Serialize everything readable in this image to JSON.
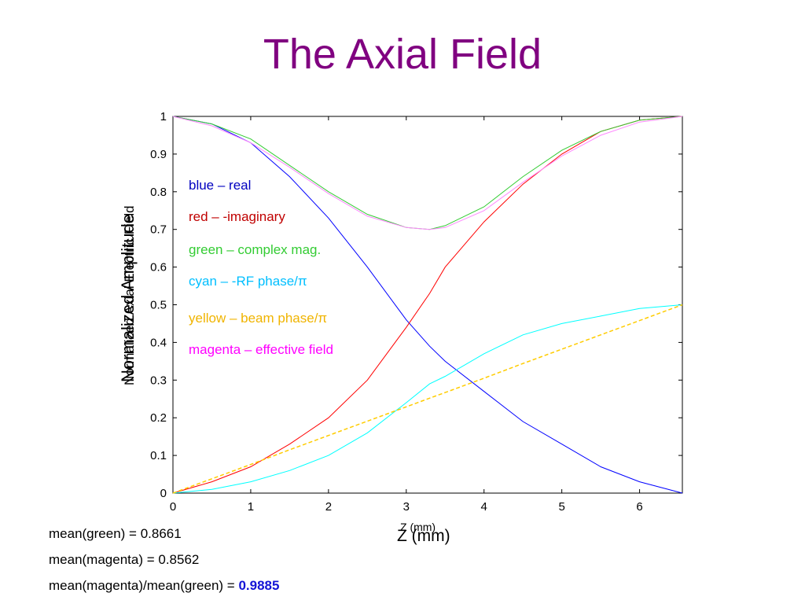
{
  "title": "The Axial Field",
  "legend": [
    {
      "text": "blue – real",
      "color": "#0000c0"
    },
    {
      "text": "red – -imaginary",
      "color": "#c00000"
    },
    {
      "text": "green – complex mag.",
      "color": "#33cc33"
    },
    {
      "text": "cyan – -RF phase/π",
      "color": "#00bfff"
    },
    {
      "text": "yellow – beam phase/π",
      "color": "#f0b400"
    },
    {
      "text": "magenta – effective field",
      "color": "#ff00ff"
    }
  ],
  "stats": {
    "mean_green": "mean(green) = 0.8661",
    "mean_magenta": "mean(magenta) = 0.8562",
    "ratio_label": "mean(magenta)/mean(green) = ",
    "ratio_value": "0.9885"
  },
  "chart_data": {
    "type": "line",
    "title": "",
    "xlabel": "Z (mm)",
    "ylabel": "Normalized Amplitude",
    "ylabel_overlay": "Normalized Axial Electric Field",
    "xlim": [
      0,
      6.55
    ],
    "ylim": [
      0,
      1
    ],
    "xticks": [
      0,
      1,
      2,
      3,
      4,
      5,
      6
    ],
    "yticks": [
      0,
      0.1,
      0.2,
      0.3,
      0.4,
      0.5,
      0.6,
      0.7,
      0.8,
      0.9,
      1
    ],
    "x": [
      0,
      0.5,
      1,
      1.5,
      2,
      2.5,
      3,
      3.3,
      3.5,
      4,
      4.5,
      5,
      5.5,
      6,
      6.55
    ],
    "series": [
      {
        "name": "blue – real",
        "color": "#0000ff",
        "values": [
          1.0,
          0.98,
          0.93,
          0.84,
          0.73,
          0.6,
          0.46,
          0.39,
          0.35,
          0.27,
          0.19,
          0.13,
          0.07,
          0.03,
          0.0
        ]
      },
      {
        "name": "red – -imaginary",
        "color": "#ff0000",
        "values": [
          0.0,
          0.03,
          0.07,
          0.13,
          0.2,
          0.3,
          0.44,
          0.53,
          0.6,
          0.72,
          0.82,
          0.9,
          0.96,
          0.99,
          1.0
        ]
      },
      {
        "name": "green – complex mag.",
        "color": "#33cc33",
        "values": [
          1.0,
          0.98,
          0.94,
          0.87,
          0.8,
          0.74,
          0.705,
          0.7,
          0.71,
          0.76,
          0.84,
          0.91,
          0.96,
          0.99,
          1.0
        ]
      },
      {
        "name": "cyan – -RF phase/π",
        "color": "#00ffff",
        "values": [
          0.0,
          0.01,
          0.03,
          0.06,
          0.1,
          0.16,
          0.24,
          0.29,
          0.31,
          0.37,
          0.42,
          0.45,
          0.47,
          0.49,
          0.5
        ]
      },
      {
        "name": "yellow – beam phase/π",
        "color": "#ffcc00",
        "dashed": true,
        "values": [
          0.0,
          0.038,
          0.076,
          0.115,
          0.153,
          0.191,
          0.229,
          0.252,
          0.267,
          0.305,
          0.344,
          0.382,
          0.42,
          0.458,
          0.5
        ]
      },
      {
        "name": "magenta – effective field",
        "color": "#ff88ff",
        "values": [
          1.0,
          0.975,
          0.93,
          0.865,
          0.795,
          0.735,
          0.705,
          0.7,
          0.705,
          0.75,
          0.825,
          0.895,
          0.95,
          0.985,
          1.0
        ]
      }
    ]
  }
}
